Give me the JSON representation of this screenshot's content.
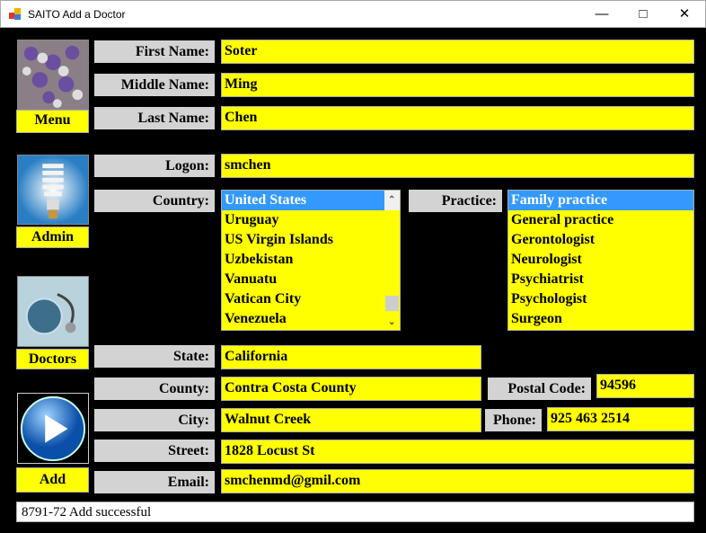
{
  "window": {
    "title": "SAITO Add a Doctor"
  },
  "nav": [
    {
      "label": "Menu",
      "icon": "wisteria-image"
    },
    {
      "label": "Admin",
      "icon": "lightbulb-image"
    },
    {
      "label": "Doctors",
      "icon": "stethoscope-globe-image"
    },
    {
      "label": "Add",
      "icon": "play-button-image"
    }
  ],
  "form": {
    "first_name": {
      "label": "First Name:",
      "value": "Soter"
    },
    "middle_name": {
      "label": "Middle Name:",
      "value": "Ming"
    },
    "last_name": {
      "label": "Last Name:",
      "value": "Chen"
    },
    "logon": {
      "label": "Logon:",
      "value": "smchen"
    },
    "country": {
      "label": "Country:",
      "items": [
        "United States",
        "Uruguay",
        "US Virgin Islands",
        "Uzbekistan",
        "Vanuatu",
        "Vatican City",
        "Venezuela"
      ],
      "selected": "United States"
    },
    "practice": {
      "label": "Practice:",
      "items": [
        "Family practice",
        "General practice",
        "Gerontologist",
        "Neurologist",
        "Psychiatrist",
        "Psychologist",
        "Surgeon"
      ],
      "selected": "Family practice"
    },
    "state": {
      "label": "State:",
      "value": "California"
    },
    "county": {
      "label": "County:",
      "value": "Contra Costa County"
    },
    "postal_code": {
      "label": "Postal Code:",
      "value": "94596"
    },
    "city": {
      "label": "City:",
      "value": "Walnut Creek"
    },
    "phone": {
      "label": "Phone:",
      "value": "925 463 2514"
    },
    "street": {
      "label": "Street:",
      "value": "1828 Locust St"
    },
    "email": {
      "label": "Email:",
      "value": "smchenmd@gmil.com"
    }
  },
  "status": "8791-72 Add successful",
  "colors": {
    "field": "#ffff00",
    "label": "#d3d3d3",
    "selection": "#3399ff",
    "background": "#000000"
  }
}
